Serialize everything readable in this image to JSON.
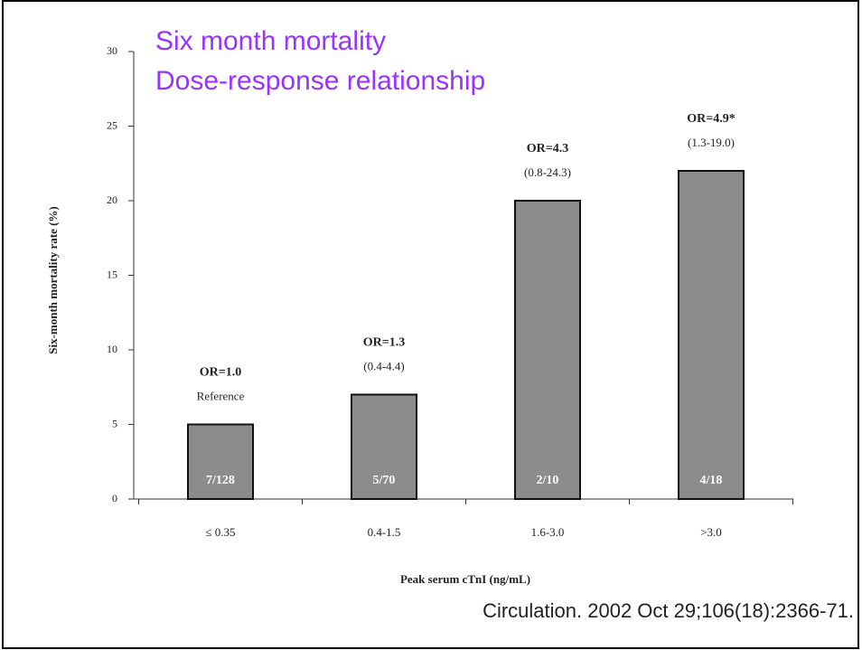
{
  "chart_data": {
    "type": "bar",
    "title": "Six month mortality",
    "subtitle": "Dose-response relationship",
    "y_label": "Six-month mortality rate (%)",
    "x_label": "Peak serum cTnI (ng/mL)",
    "categories": [
      "≤ 0.35",
      "0.4-1.5",
      "1.6-3.0",
      ">3.0"
    ],
    "values": [
      5,
      7,
      20,
      22
    ],
    "bar_labels": [
      "7/128",
      "5/70",
      "2/10",
      "4/18"
    ],
    "odds_ratios": [
      "OR=1.0",
      "OR=1.3",
      "OR=4.3",
      "OR=4.9*"
    ],
    "intervals": [
      "Reference",
      "(0.4-4.4)",
      "(0.8-24.3)",
      "(1.3-19.0)"
    ],
    "color": "#8c8c8c",
    "ylim": [
      0,
      30
    ],
    "yticks": [
      0,
      5,
      10,
      15,
      20,
      25,
      30
    ]
  },
  "citation": "Circulation. 2002 Oct 29;106(18):2366-71."
}
